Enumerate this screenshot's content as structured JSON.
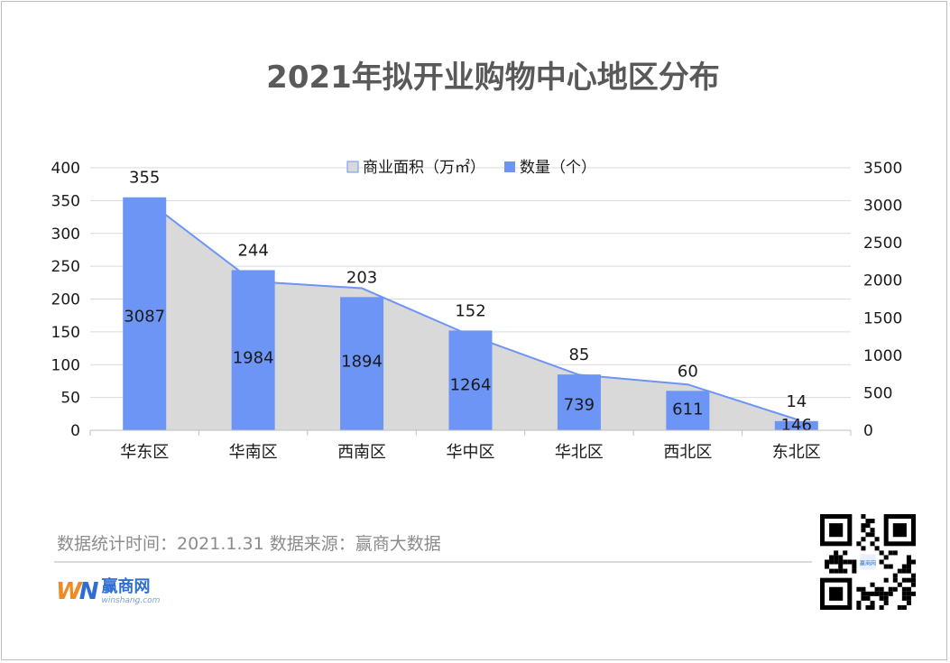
{
  "title": "2021年拟开业购物中心地区分布",
  "chart_data": {
    "type": "bar",
    "title": "2021年拟开业购物中心地区分布",
    "categories": [
      "华东区",
      "华南区",
      "西南区",
      "华中区",
      "华北区",
      "西北区",
      "东北区"
    ],
    "series": [
      {
        "name": "商业面积（万㎡）",
        "kind": "area",
        "axis": "right",
        "values": [
          3087,
          1984,
          1894,
          1264,
          739,
          611,
          146
        ],
        "color": "#d9d9d9",
        "line_color": "#6d95f5"
      },
      {
        "name": "数量（个）",
        "kind": "bar",
        "axis": "left",
        "values": [
          355,
          244,
          203,
          152,
          85,
          60,
          14
        ],
        "color": "#6d95f5"
      }
    ],
    "left_axis": {
      "min": 0,
      "max": 400,
      "step": 50,
      "ticks": [
        "0",
        "50",
        "100",
        "150",
        "200",
        "250",
        "300",
        "350",
        "400"
      ]
    },
    "right_axis": {
      "min": 0,
      "max": 3500,
      "step": 500,
      "ticks": [
        "0",
        "500",
        "1000",
        "1500",
        "2000",
        "2500",
        "3000",
        "3500"
      ]
    },
    "legend": {
      "position": "top",
      "items": [
        "商业面积（万㎡）",
        "数量（个）"
      ]
    },
    "grid": true
  },
  "footer": {
    "source_text": "数据统计时间：2021.1.31  数据来源：赢商大数据"
  },
  "logo": {
    "mark_w": "W",
    "mark_n": "N",
    "name": "赢商网",
    "domain": "winshang.com"
  },
  "qr_code": {
    "alt": "qr-code",
    "mini_brand": "赢商网"
  }
}
